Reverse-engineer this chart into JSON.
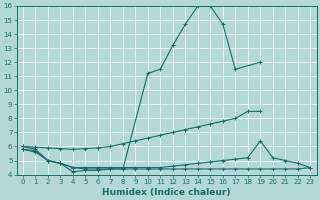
{
  "xlabel": "Humidex (Indice chaleur)",
  "bg": "#b2d8d8",
  "lc": "#1a6b6b",
  "grid_color": "#c8e8e8",
  "ylim": [
    4,
    16
  ],
  "xlim": [
    -0.5,
    23.5
  ],
  "yticks": [
    4,
    5,
    6,
    7,
    8,
    9,
    10,
    11,
    12,
    13,
    14,
    15,
    16
  ],
  "xticks": [
    0,
    1,
    2,
    3,
    4,
    5,
    6,
    7,
    8,
    9,
    10,
    11,
    12,
    13,
    14,
    15,
    16,
    17,
    18,
    19,
    20,
    21,
    22,
    23
  ],
  "curve1_x": [
    0,
    1,
    2,
    3,
    4,
    5,
    6,
    7,
    8,
    10,
    11,
    12,
    13,
    14,
    15,
    16,
    17,
    19
  ],
  "curve1_y": [
    6.0,
    5.8,
    5.0,
    4.8,
    4.2,
    4.3,
    4.3,
    4.4,
    4.4,
    11.2,
    11.5,
    13.2,
    14.7,
    16.0,
    16.0,
    14.7,
    11.5,
    12.0
  ],
  "curve2_x": [
    0,
    1,
    2,
    3,
    4,
    5,
    6,
    7,
    8,
    9,
    10,
    11,
    12,
    13,
    14,
    15,
    16,
    17,
    18,
    19
  ],
  "curve2_y": [
    6.0,
    5.95,
    5.9,
    5.85,
    5.8,
    5.85,
    5.9,
    6.0,
    6.2,
    6.4,
    6.6,
    6.8,
    7.0,
    7.2,
    7.4,
    7.6,
    7.8,
    8.0,
    8.5,
    8.5
  ],
  "curve3_x": [
    0,
    1,
    2,
    3,
    4,
    5,
    6,
    7,
    8,
    9,
    10,
    11,
    12,
    13,
    14,
    15,
    16,
    17,
    18,
    19,
    20,
    21,
    22,
    23
  ],
  "curve3_y": [
    5.8,
    5.7,
    5.0,
    4.8,
    4.5,
    4.5,
    4.5,
    4.5,
    4.5,
    4.5,
    4.5,
    4.5,
    4.6,
    4.7,
    4.8,
    4.9,
    5.0,
    5.1,
    5.2,
    6.4,
    5.2,
    5.0,
    4.8,
    4.5
  ],
  "curve4_x": [
    0,
    1,
    2,
    3,
    4,
    5,
    6,
    7,
    8,
    9,
    10,
    11,
    12,
    13,
    14,
    15,
    16,
    17,
    18,
    19,
    20,
    21,
    22,
    23
  ],
  "curve4_y": [
    5.8,
    5.6,
    5.0,
    4.8,
    4.5,
    4.4,
    4.4,
    4.4,
    4.4,
    4.4,
    4.4,
    4.4,
    4.4,
    4.4,
    4.4,
    4.4,
    4.4,
    4.4,
    4.4,
    4.4,
    4.4,
    4.4,
    4.4,
    4.5
  ]
}
